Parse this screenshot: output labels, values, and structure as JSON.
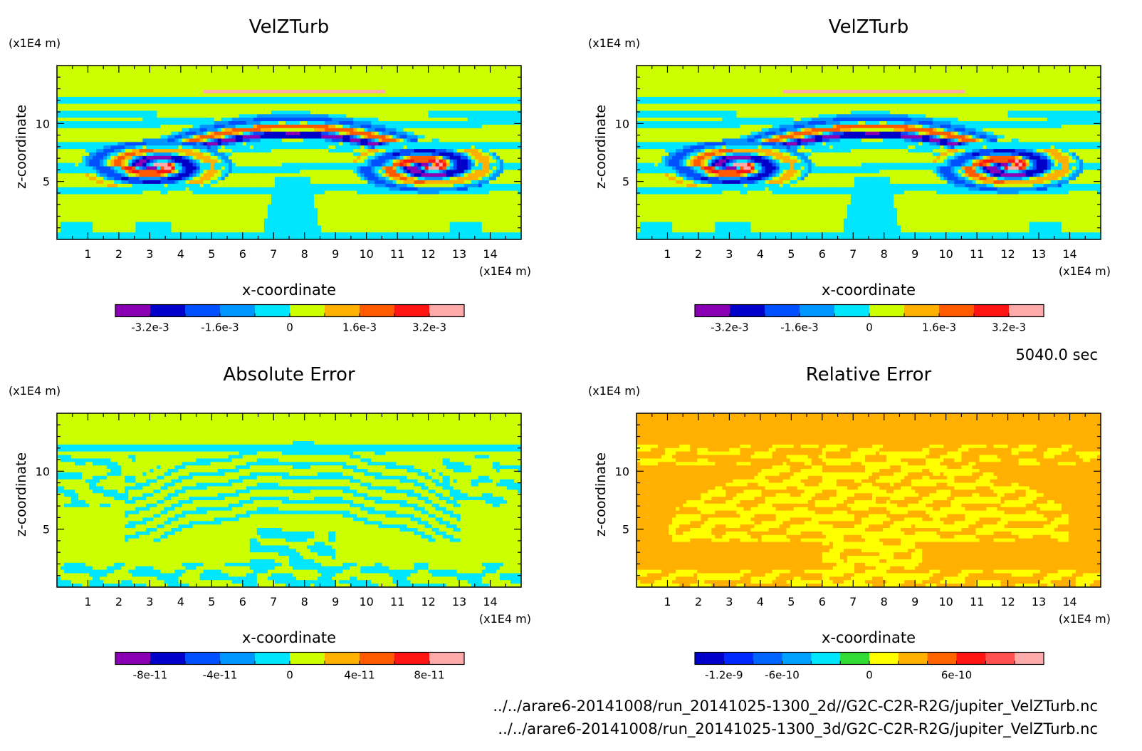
{
  "figure": {
    "time_label": "5040.0 sec",
    "file_lines": [
      "../../arare6-20141008/run_20141025-1300_2d//G2C-C2R-R2G/jupiter_VelZTurb.nc",
      "../../arare6-20141008/run_20141025-1300_3d/G2C-C2R-R2G/jupiter_VelZTurb.nc"
    ]
  },
  "chart_data": [
    {
      "type": "heatmap",
      "title": "VelZTurb",
      "xlabel": "x-coordinate",
      "ylabel": "z-coordinate",
      "x_unit": "(x1E4 m)",
      "y_unit": "(x1E4 m)",
      "xlim": [
        0,
        15
      ],
      "ylim": [
        0,
        15
      ],
      "x_ticks": [
        1,
        2,
        3,
        4,
        5,
        6,
        7,
        8,
        9,
        10,
        11,
        12,
        13,
        14
      ],
      "y_ticks": [
        5,
        10
      ],
      "colorbar": {
        "colors": [
          "#8b00b4",
          "#0000c8",
          "#0050ff",
          "#0096ff",
          "#00e6ff",
          "#ccff00",
          "#ffb000",
          "#ff5a00",
          "#ff1414",
          "#ffaaaa"
        ],
        "labels": [
          "-3.2e-3",
          "-1.6e-3",
          "0",
          "1.6e-3",
          "3.2e-3"
        ],
        "label_positions": [
          1,
          3,
          5,
          7,
          9
        ]
      }
    },
    {
      "type": "heatmap",
      "title": "VelZTurb",
      "xlabel": "x-coordinate",
      "ylabel": "z-coordinate",
      "x_unit": "(x1E4 m)",
      "y_unit": "(x1E4 m)",
      "xlim": [
        0,
        15
      ],
      "ylim": [
        0,
        15
      ],
      "x_ticks": [
        1,
        2,
        3,
        4,
        5,
        6,
        7,
        8,
        9,
        10,
        11,
        12,
        13,
        14
      ],
      "y_ticks": [
        5,
        10
      ],
      "colorbar": {
        "colors": [
          "#8b00b4",
          "#0000c8",
          "#0050ff",
          "#0096ff",
          "#00e6ff",
          "#ccff00",
          "#ffb000",
          "#ff5a00",
          "#ff1414",
          "#ffaaaa"
        ],
        "labels": [
          "-3.2e-3",
          "-1.6e-3",
          "0",
          "1.6e-3",
          "3.2e-3"
        ],
        "label_positions": [
          1,
          3,
          5,
          7,
          9
        ]
      }
    },
    {
      "type": "heatmap",
      "title": "Absolute Error",
      "xlabel": "x-coordinate",
      "ylabel": "z-coordinate",
      "x_unit": "(x1E4 m)",
      "y_unit": "(x1E4 m)",
      "xlim": [
        0,
        15
      ],
      "ylim": [
        0,
        15
      ],
      "x_ticks": [
        1,
        2,
        3,
        4,
        5,
        6,
        7,
        8,
        9,
        10,
        11,
        12,
        13,
        14
      ],
      "y_ticks": [
        5,
        10
      ],
      "colorbar": {
        "colors": [
          "#8b00b4",
          "#0000c8",
          "#0050ff",
          "#0096ff",
          "#00e6ff",
          "#ccff00",
          "#ffb000",
          "#ff5a00",
          "#ff1414",
          "#ffaaaa"
        ],
        "labels": [
          "-8e-11",
          "-4e-11",
          "0",
          "4e-11",
          "8e-11"
        ],
        "label_positions": [
          1,
          3,
          5,
          7,
          9
        ]
      }
    },
    {
      "type": "heatmap",
      "title": "Relative Error",
      "xlabel": "x-coordinate",
      "ylabel": "z-coordinate",
      "x_unit": "(x1E4 m)",
      "y_unit": "(x1E4 m)",
      "xlim": [
        0,
        15
      ],
      "ylim": [
        0,
        15
      ],
      "x_ticks": [
        1,
        2,
        3,
        4,
        5,
        6,
        7,
        8,
        9,
        10,
        11,
        12,
        13,
        14
      ],
      "y_ticks": [
        5,
        10
      ],
      "colorbar": {
        "colors": [
          "#0000c8",
          "#0028ff",
          "#0064ff",
          "#00a0ff",
          "#00e6ff",
          "#32dc32",
          "#ffff00",
          "#ffb000",
          "#ff6400",
          "#ff1414",
          "#ff5050",
          "#ffaaaa"
        ],
        "labels": [
          "-1.2e-9",
          "-6e-10",
          "0",
          "6e-10"
        ],
        "label_positions": [
          1,
          3,
          6,
          9
        ]
      }
    }
  ]
}
